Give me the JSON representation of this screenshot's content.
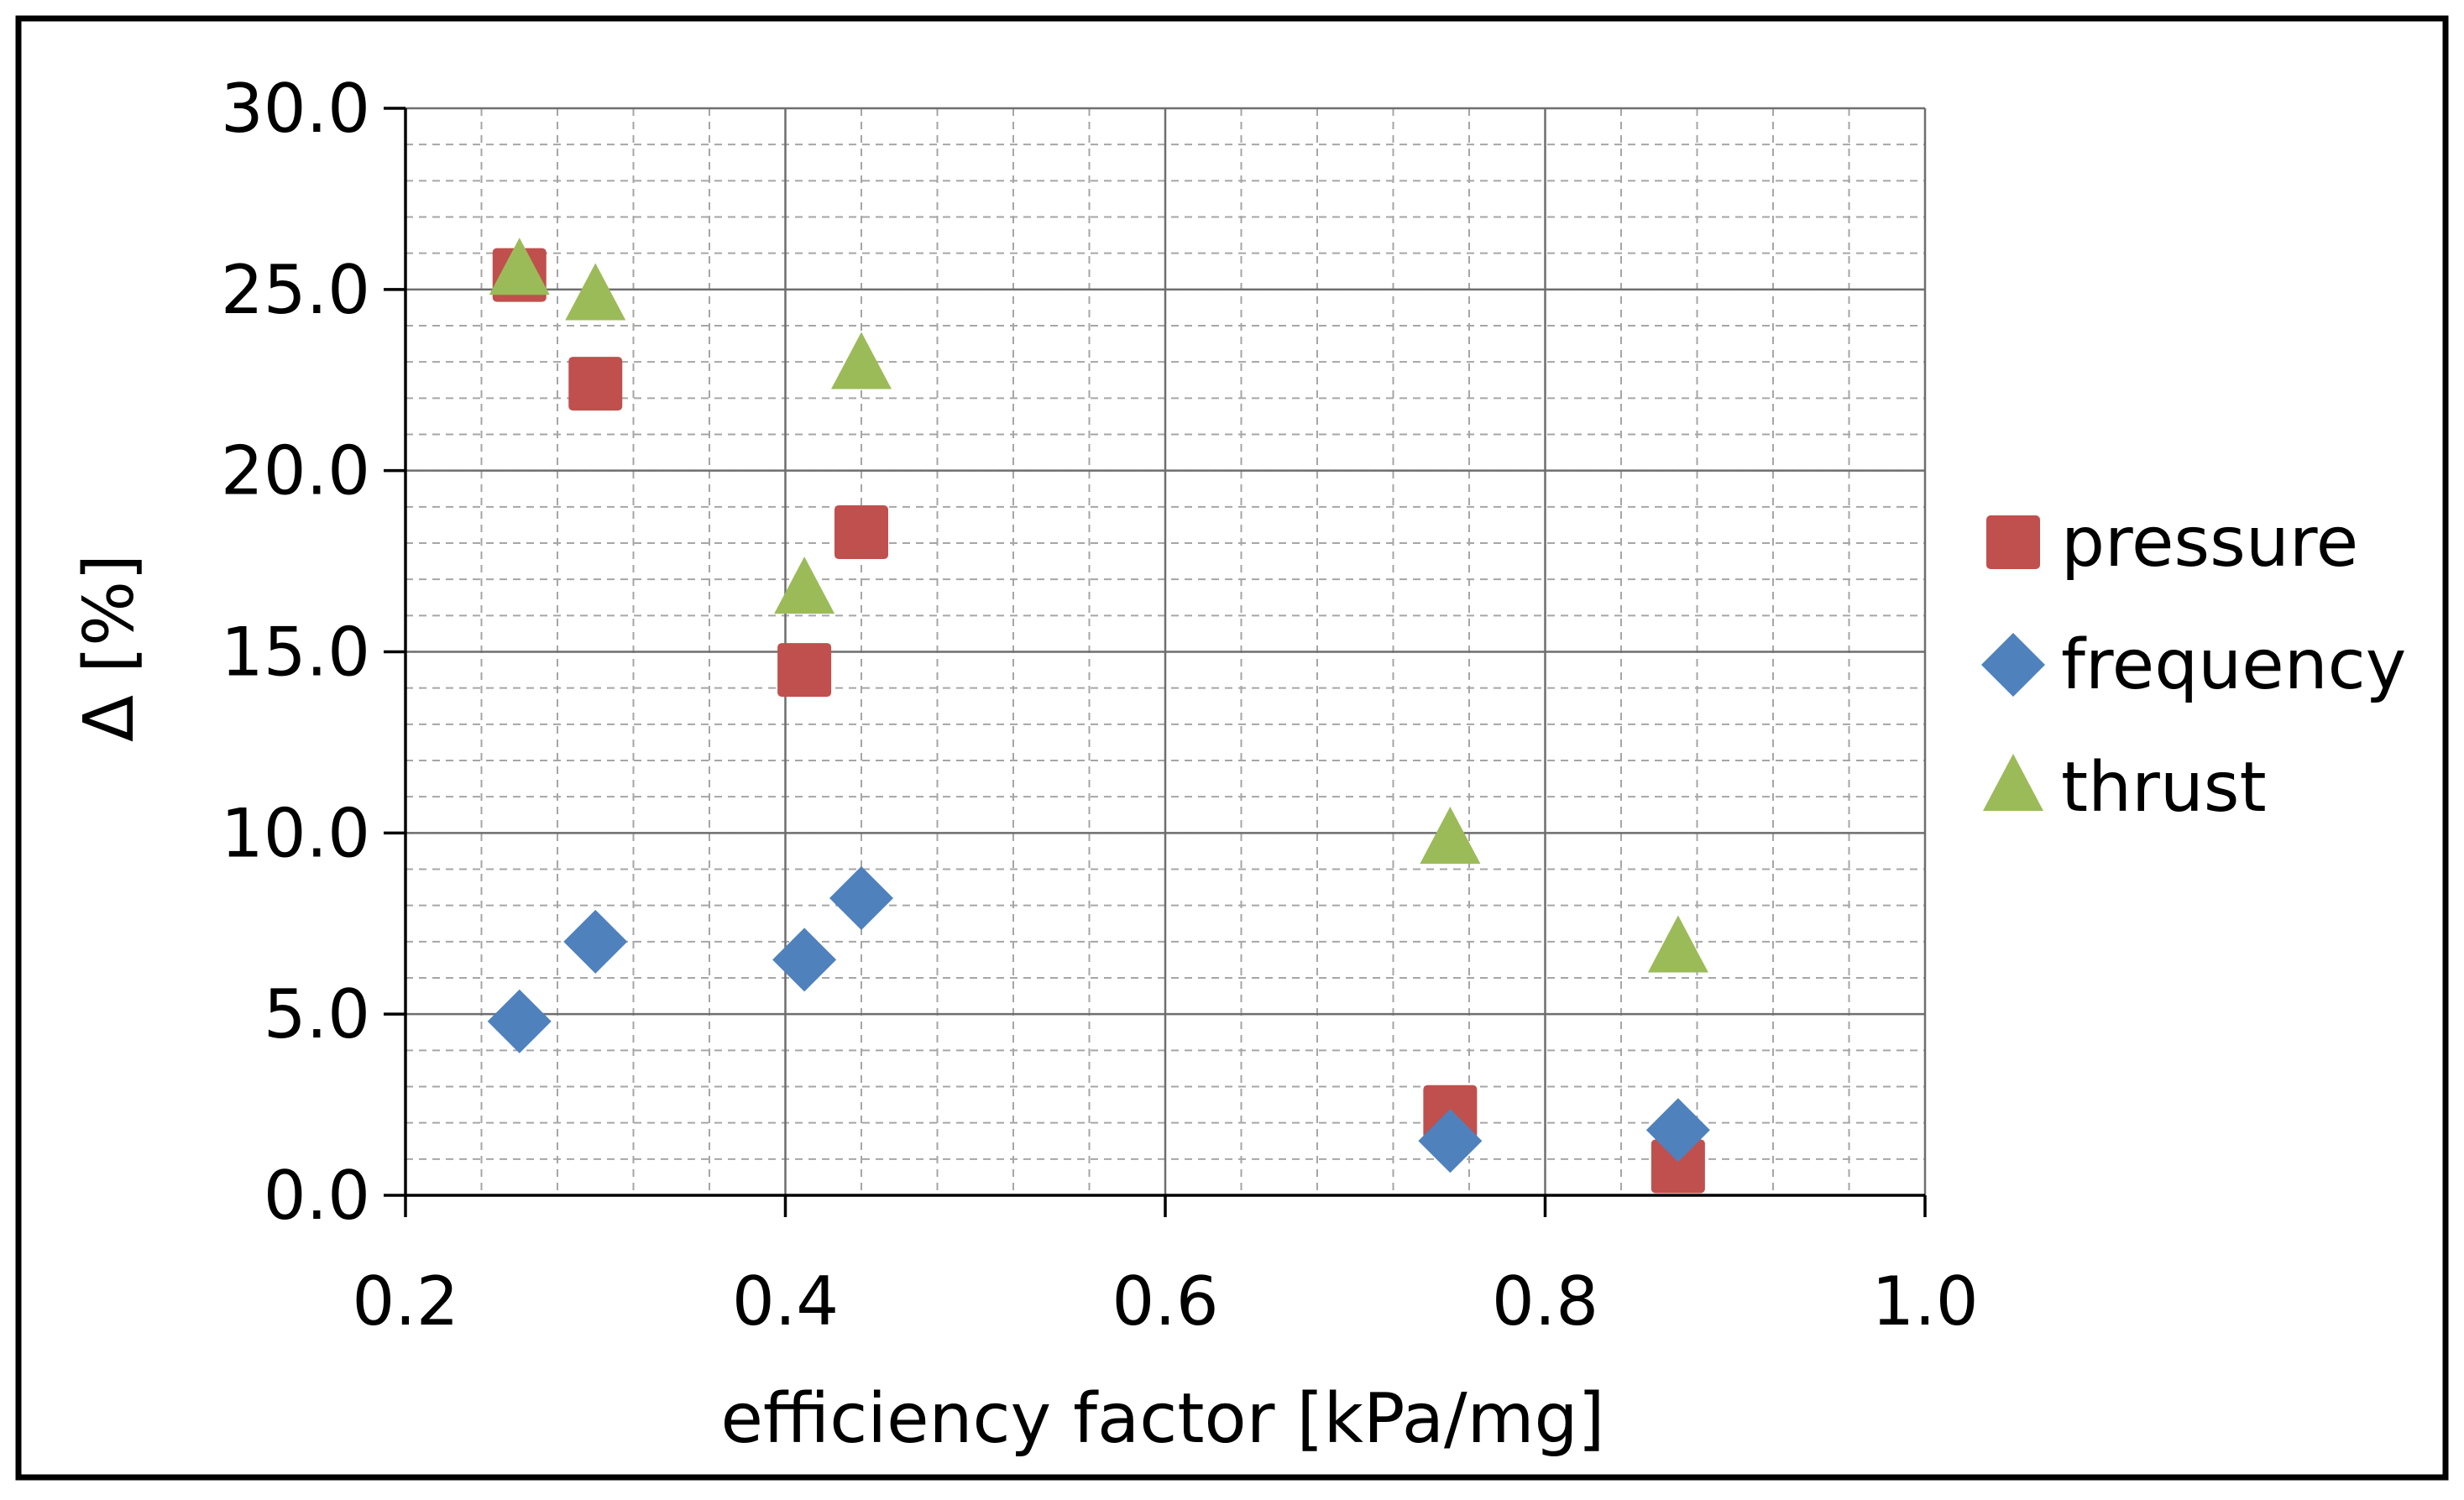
{
  "chart_data": {
    "type": "scatter",
    "title": "",
    "xlabel": "efficiency factor [kPa/mg]",
    "ylabel": "Δ [%]",
    "xlim": [
      0.2,
      1.0
    ],
    "ylim": [
      0.0,
      30.0
    ],
    "x_ticks": [
      0.2,
      0.4,
      0.6,
      0.8,
      1.0
    ],
    "y_ticks": [
      0.0,
      5.0,
      10.0,
      15.0,
      20.0,
      25.0,
      30.0
    ],
    "x_tick_labels": [
      "0.2",
      "0.4",
      "0.6",
      "0.8",
      "1.0"
    ],
    "y_tick_labels": [
      "0.0",
      "5.0",
      "10.0",
      "15.0",
      "20.0",
      "25.0",
      "30.0"
    ],
    "x_minor_step": 0.04,
    "y_minor_step": 1.0,
    "grid": true,
    "legend_position": "right",
    "series": [
      {
        "name": "pressure",
        "marker": "square",
        "color": "#c0504d",
        "x": [
          0.26,
          0.3,
          0.41,
          0.44,
          0.75,
          0.87
        ],
        "y": [
          25.4,
          22.4,
          14.5,
          18.3,
          2.3,
          0.8
        ]
      },
      {
        "name": "frequency",
        "marker": "diamond",
        "color": "#4f81bd",
        "x": [
          0.26,
          0.3,
          0.41,
          0.44,
          0.75,
          0.87
        ],
        "y": [
          4.8,
          7.0,
          6.5,
          8.2,
          1.5,
          1.8
        ]
      },
      {
        "name": "thrust",
        "marker": "triangle",
        "color": "#9bbb59",
        "x": [
          0.26,
          0.3,
          0.41,
          0.44,
          0.75,
          0.87
        ],
        "y": [
          25.5,
          24.8,
          16.7,
          22.9,
          9.8,
          6.8
        ]
      }
    ]
  }
}
